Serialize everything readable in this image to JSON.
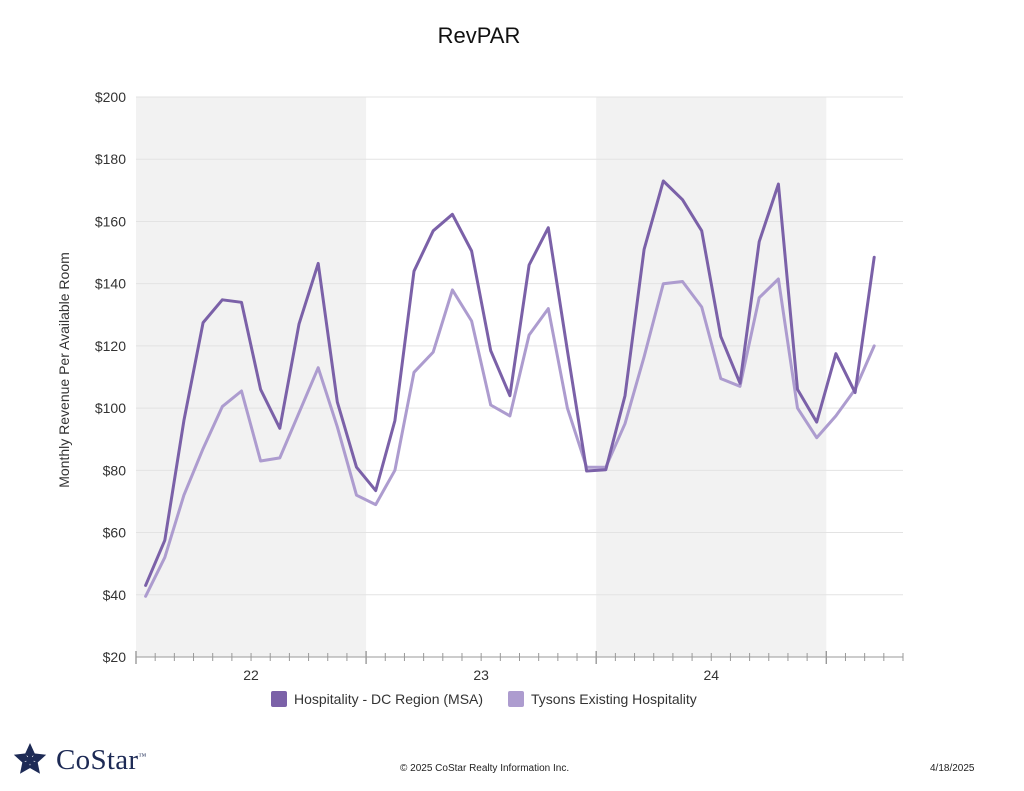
{
  "chart_data": {
    "type": "line",
    "title": "RevPAR",
    "ylabel": "Monthly Revenue Per Available Room",
    "xlabel": "",
    "ylim": [
      20,
      200
    ],
    "yticks": [
      20,
      40,
      60,
      80,
      100,
      120,
      140,
      160,
      180,
      200
    ],
    "ytick_labels": [
      "$20",
      "$40",
      "$60",
      "$80",
      "$100",
      "$120",
      "$140",
      "$160",
      "$180",
      "$200"
    ],
    "x_range": [
      0,
      40
    ],
    "year_bands": [
      {
        "label": "22",
        "start": 0,
        "end": 12,
        "shaded": true
      },
      {
        "label": "23",
        "start": 12,
        "end": 24,
        "shaded": false
      },
      {
        "label": "24",
        "start": 24,
        "end": 36,
        "shaded": true
      },
      {
        "label": "",
        "start": 36,
        "end": 40,
        "shaded": false
      }
    ],
    "grid": true,
    "legend_position": "bottom-center",
    "series": [
      {
        "name": "Hospitality - DC Region (MSA)",
        "color": "#7b61a8",
        "x": [
          0.5,
          1.5,
          2.5,
          3.5,
          4.5,
          5.5,
          6.5,
          7.5,
          8.5,
          9.5,
          10.5,
          11.5,
          12.5,
          13.5,
          14.5,
          15.5,
          16.5,
          17.5,
          18.5,
          19.5,
          20.5,
          21.5,
          22.5,
          23.5,
          24.5,
          25.5,
          26.5,
          27.5,
          28.5,
          29.5,
          30.5,
          31.5,
          32.5,
          33.5,
          34.5,
          35.5,
          36.5,
          37.5,
          38.5
        ],
        "values": [
          43,
          57.5,
          96,
          127.5,
          134.8,
          134,
          106,
          93.5,
          127,
          146.5,
          102,
          81,
          73.5,
          96,
          144,
          157,
          162.3,
          150.5,
          118.5,
          104,
          146,
          158,
          118.5,
          79.8,
          80.2,
          104,
          151,
          173,
          167,
          157,
          123,
          108,
          153.5,
          172,
          106,
          95.5,
          117.5,
          105,
          148.5
        ]
      },
      {
        "name": "Tysons Existing Hospitality",
        "color": "#ad9ccf",
        "x": [
          0.5,
          1.5,
          2.5,
          3.5,
          4.5,
          5.5,
          6.5,
          7.5,
          8.5,
          9.5,
          10.5,
          11.5,
          12.5,
          13.5,
          14.5,
          15.5,
          16.5,
          17.5,
          18.5,
          19.5,
          20.5,
          21.5,
          22.5,
          23.5,
          24.5,
          25.5,
          26.5,
          27.5,
          28.5,
          29.5,
          30.5,
          31.5,
          32.5,
          33.5,
          34.5,
          35.5,
          36.5,
          37.5,
          38.5
        ],
        "values": [
          39.5,
          52,
          72,
          87,
          100.5,
          105.5,
          83,
          84,
          98.5,
          113,
          94,
          72,
          69,
          80,
          111.5,
          118,
          138,
          128,
          101,
          97.5,
          123.5,
          132,
          100,
          81,
          81,
          95,
          116.5,
          140,
          140.7,
          132.5,
          109.5,
          107,
          135.5,
          141.5,
          100,
          90.5,
          97.5,
          106,
          120
        ]
      }
    ]
  },
  "footer": {
    "brand": "CoStar",
    "trademark": "™",
    "copyright": "© 2025 CoStar Realty Information Inc.",
    "date": "4/18/2025"
  },
  "colors": {
    "band_shade": "#f2f2f2",
    "gridline": "#e3e3e3",
    "axis": "#999999",
    "logo_navy": "#1d2a55"
  }
}
